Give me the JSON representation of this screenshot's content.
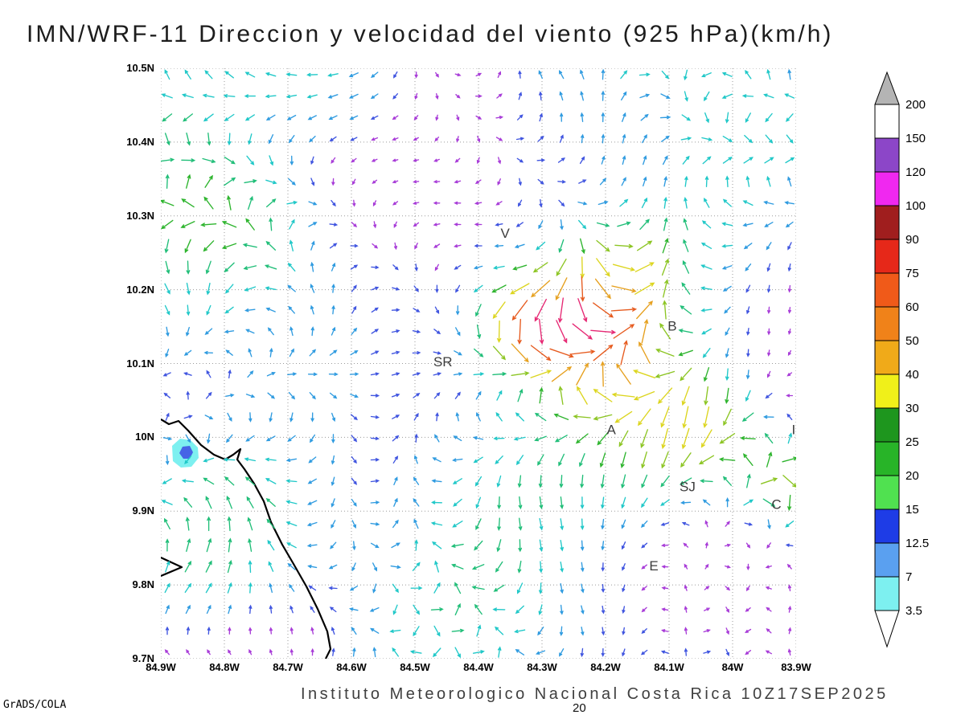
{
  "title": "IMN/WRF-11 Direccion y velocidad del viento (925 hPa)(km/h)",
  "footer": {
    "institute": "Instituto Meteorologico Nacional Costa Rica 10Z17SEP2025",
    "credit": "GrADS/COLA",
    "contour_label": "20"
  },
  "chart_data": {
    "type": "vector_field",
    "model": "IMN/WRF-11",
    "variable": "Direccion y velocidad del viento",
    "pressure_level": "925 hPa",
    "units": "km/h",
    "valid_time": "10Z17SEP2025",
    "lat_range": [
      9.7,
      10.5
    ],
    "lon_range": [
      -84.9,
      -83.9
    ],
    "lat_ticks": [
      "10.5N",
      "10.4N",
      "10.3N",
      "10.2N",
      "10.1N",
      "10N",
      "9.9N",
      "9.8N",
      "9.7N"
    ],
    "lon_ticks": [
      "84.9W",
      "84.8W",
      "84.7W",
      "84.6W",
      "84.5W",
      "84.4W",
      "84.3W",
      "84.2W",
      "84.1W",
      "84W",
      "83.9W"
    ],
    "grid_on": true,
    "colorbar": {
      "position": "right",
      "levels": [
        "200",
        "150",
        "120",
        "100",
        "90",
        "75",
        "60",
        "50",
        "40",
        "30",
        "25",
        "20",
        "15",
        "12.5",
        "7",
        "3.5"
      ],
      "colors": [
        "#FFFFFF",
        "#8C46C8",
        "#F028F0",
        "#A01E1E",
        "#E62819",
        "#F05A19",
        "#F08219",
        "#F0AA19",
        "#F0F019",
        "#1E961E",
        "#28B428",
        "#50E150",
        "#1E3CE6",
        "#5AA0F0",
        "#7DF0F0"
      ],
      "above_color": "#B4B4B4",
      "below_color": "#FFFFFF"
    },
    "stations": [
      {
        "label": "V",
        "fx": 0.542,
        "fy": 0.287
      },
      {
        "label": "B",
        "fx": 0.805,
        "fy": 0.444
      },
      {
        "label": "SR",
        "fx": 0.444,
        "fy": 0.505
      },
      {
        "label": "A",
        "fx": 0.709,
        "fy": 0.62
      },
      {
        "label": "I",
        "fx": 0.996,
        "fy": 0.62
      },
      {
        "label": "SJ",
        "fx": 0.829,
        "fy": 0.716
      },
      {
        "label": "C",
        "fx": 0.969,
        "fy": 0.746
      },
      {
        "label": "E",
        "fx": 0.776,
        "fy": 0.85
      }
    ],
    "coastline": {
      "main": [
        [
          0,
          437
        ],
        [
          10,
          443
        ],
        [
          22,
          439
        ],
        [
          34,
          451
        ],
        [
          50,
          469
        ],
        [
          66,
          481
        ],
        [
          80,
          487
        ],
        [
          90,
          481
        ],
        [
          99,
          474
        ],
        [
          95,
          487
        ],
        [
          104,
          499
        ],
        [
          116,
          517
        ],
        [
          128,
          539
        ],
        [
          137,
          565
        ],
        [
          151,
          593
        ],
        [
          165,
          617
        ],
        [
          181,
          645
        ],
        [
          195,
          673
        ],
        [
          207,
          701
        ],
        [
          211,
          723
        ],
        [
          205,
          735
        ]
      ],
      "spit": [
        [
          0,
          609
        ],
        [
          26,
          621
        ],
        [
          0,
          632
        ]
      ]
    },
    "shaded_patch": {
      "outer_color": "#7DF0F0",
      "inner_color": "#4664E6",
      "outer": [
        [
          14,
          470
        ],
        [
          24,
          461
        ],
        [
          37,
          463
        ],
        [
          46,
          472
        ],
        [
          47,
          485
        ],
        [
          38,
          496
        ],
        [
          25,
          497
        ],
        [
          15,
          489
        ]
      ],
      "inner": [
        [
          27,
          471
        ],
        [
          36,
          470
        ],
        [
          40,
          478
        ],
        [
          36,
          486
        ],
        [
          28,
          486
        ],
        [
          23,
          479
        ]
      ]
    },
    "field": {
      "cols": 31,
      "rows": 28,
      "arrow_bins": [
        {
          "max": 5,
          "color": "#A83CD8"
        },
        {
          "max": 8,
          "color": "#4055E0"
        },
        {
          "max": 12,
          "color": "#2F9BE0"
        },
        {
          "max": 16,
          "color": "#20C8C8"
        },
        {
          "max": 21,
          "color": "#20BE78"
        },
        {
          "max": 27,
          "color": "#2DB42D"
        },
        {
          "max": 34,
          "color": "#8CC523"
        },
        {
          "max": 42,
          "color": "#DCD51E"
        },
        {
          "max": 52,
          "color": "#E6A01E"
        },
        {
          "max": 64,
          "color": "#E65A1E"
        },
        {
          "max": 9999,
          "color": "#E62873"
        }
      ],
      "hotspots": [
        {
          "u": 0.585,
          "v": 0.435,
          "a": 40,
          "r": 0.055
        },
        {
          "u": 0.7,
          "v": 0.47,
          "a": 30,
          "r": 0.075
        },
        {
          "u": 0.66,
          "v": 0.4,
          "a": 24,
          "r": 0.08
        },
        {
          "u": 0.79,
          "v": 0.63,
          "a": 22,
          "r": 0.09
        },
        {
          "u": 0.87,
          "v": 0.6,
          "a": 22,
          "r": 0.06
        },
        {
          "u": 0.985,
          "v": 0.7,
          "a": 28,
          "r": 0.05
        },
        {
          "u": 0.1,
          "v": 0.8,
          "a": 18,
          "r": 0.11
        },
        {
          "u": 0.13,
          "v": 0.28,
          "a": 14,
          "r": 0.09
        },
        {
          "u": 0.3,
          "v": 0.03,
          "a": 12,
          "r": 0.08
        },
        {
          "u": 0.75,
          "v": 0.33,
          "a": 14,
          "r": 0.06
        }
      ]
    }
  }
}
